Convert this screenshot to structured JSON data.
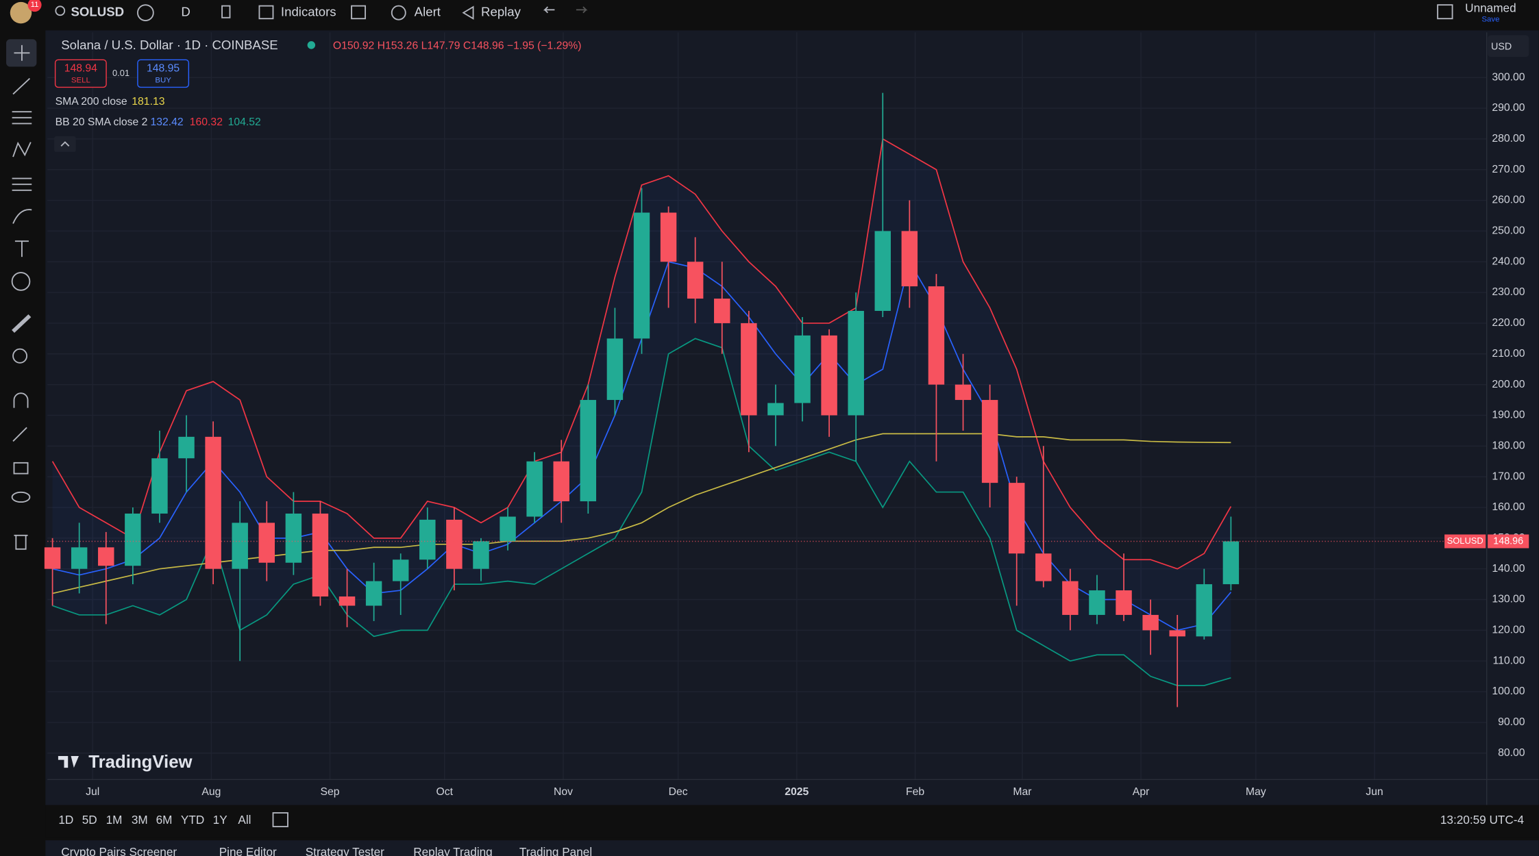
{
  "toolbar": {
    "badge": "11",
    "symbol": "SOLUSD",
    "interval": "D",
    "indicators": "Indicators",
    "alert": "Alert",
    "replay": "Replay",
    "layout": "Unnamed",
    "save": "Save"
  },
  "legend": {
    "title": "Solana / U.S. Dollar · 1D · COINBASE",
    "ohlc": [
      "O150.92",
      "H153.26",
      "L147.79",
      "C148.96",
      "−1.95 (−1.29%)"
    ],
    "sell_price": "148.94",
    "sell": "SELL",
    "spread": "0.01",
    "buy_price": "148.95",
    "buy": "BUY",
    "sma": {
      "label": "SMA 200 close",
      "value": "181.13"
    },
    "bb": {
      "label": "BB 20 SMA close 2",
      "basis": "132.42",
      "upper": "160.32",
      "lower": "104.52"
    }
  },
  "currency": "USD",
  "price_tag": {
    "symbol": "SOLUSD",
    "price": "148.96"
  },
  "watermark": "TradingView",
  "timeframes": [
    "1D",
    "5D",
    "1M",
    "3M",
    "6M",
    "YTD",
    "1Y",
    "All"
  ],
  "clock": "13:20:59 UTC-4",
  "bottom_tabs": [
    "Crypto Pairs Screener",
    "Pine Editor",
    "Strategy Tester",
    "Replay Trading",
    "Trading Panel"
  ],
  "chart_data": {
    "type": "candlestick",
    "up_color": "#22ab94",
    "down_color": "#f7525f",
    "x": [
      0.5,
      1.5,
      2.5,
      3.5,
      4.5,
      5.5,
      6.5,
      7.5,
      8.5,
      9.5,
      10.5,
      11.5,
      12.5,
      13.5,
      14.5,
      15.5,
      16.5,
      17.5,
      18.5,
      19.5,
      20.5,
      21.5,
      22.5,
      23.5,
      24.5,
      25.5,
      26.5,
      27.5,
      28.5,
      29.5,
      30.5,
      31.5,
      32.5,
      33.5,
      34.5,
      35.5,
      36.5,
      37.5,
      38.5,
      39.5,
      40.5,
      41.5,
      42.5,
      43.5,
      44.5
    ],
    "open": [
      147,
      140,
      147,
      141,
      158,
      176,
      183,
      140,
      155,
      142,
      158,
      131,
      128,
      136,
      143,
      156,
      140,
      149,
      157,
      175,
      162,
      195,
      215,
      256,
      240,
      228,
      220,
      190,
      194,
      216,
      190,
      224,
      250,
      232,
      200,
      195,
      168,
      145,
      136,
      125,
      133,
      125,
      120,
      118,
      135
    ],
    "high": [
      150,
      155,
      152,
      160,
      185,
      190,
      188,
      162,
      162,
      165,
      162,
      140,
      142,
      145,
      160,
      160,
      150,
      160,
      178,
      182,
      200,
      225,
      264,
      258,
      248,
      240,
      224,
      200,
      222,
      218,
      230,
      295,
      260,
      236,
      210,
      200,
      170,
      180,
      140,
      138,
      145,
      130,
      125,
      140,
      157
    ],
    "low": [
      128,
      132,
      122,
      135,
      155,
      165,
      135,
      110,
      136,
      138,
      128,
      121,
      123,
      125,
      140,
      133,
      136,
      146,
      155,
      155,
      158,
      190,
      210,
      225,
      220,
      210,
      178,
      180,
      188,
      183,
      175,
      222,
      225,
      175,
      185,
      160,
      128,
      134,
      120,
      122,
      123,
      112,
      95,
      117,
      133
    ],
    "close": [
      140,
      147,
      141,
      158,
      176,
      183,
      140,
      155,
      142,
      158,
      131,
      128,
      136,
      143,
      156,
      140,
      149,
      157,
      175,
      162,
      195,
      215,
      256,
      240,
      228,
      220,
      190,
      194,
      216,
      190,
      224,
      250,
      232,
      200,
      195,
      168,
      145,
      136,
      125,
      133,
      125,
      120,
      118,
      135,
      148.96
    ],
    "lines": [
      {
        "color": "#f23645",
        "values": [
          175,
          160,
          155,
          150,
          178,
          198,
          201,
          195,
          170,
          162,
          162,
          158,
          150,
          150,
          162,
          160,
          155,
          160,
          175,
          178,
          200,
          235,
          265,
          268,
          262,
          250,
          240,
          232,
          220,
          220,
          225,
          280,
          275,
          270,
          240,
          225,
          205,
          175,
          160,
          150,
          143,
          143,
          140,
          145,
          160.32
        ]
      },
      {
        "color": "#2962ff",
        "values": [
          140,
          138,
          140,
          143,
          150,
          165,
          175,
          165,
          150,
          150,
          152,
          140,
          132,
          133,
          140,
          148,
          145,
          148,
          155,
          162,
          170,
          190,
          215,
          240,
          238,
          232,
          222,
          210,
          200,
          210,
          200,
          205,
          240,
          225,
          205,
          190,
          160,
          145,
          135,
          130,
          130,
          125,
          120,
          122,
          132.42
        ]
      },
      {
        "color": "#089981",
        "values": [
          128,
          125,
          125,
          128,
          125,
          130,
          150,
          120,
          125,
          135,
          138,
          125,
          118,
          120,
          120,
          135,
          135,
          136,
          135,
          140,
          145,
          150,
          165,
          210,
          215,
          212,
          180,
          172,
          175,
          178,
          175,
          160,
          175,
          165,
          165,
          150,
          120,
          115,
          110,
          112,
          112,
          105,
          102,
          102,
          104.52
        ]
      },
      {
        "color": "#c9bb45",
        "values": [
          132,
          134,
          136,
          138,
          140,
          141,
          142,
          143,
          144,
          145,
          146,
          146,
          147,
          147,
          148,
          148,
          148,
          149,
          149,
          149,
          150,
          152,
          155,
          160,
          164,
          167,
          170,
          173,
          176,
          179,
          182,
          184,
          184,
          184,
          184,
          184,
          183,
          183,
          182,
          182,
          182,
          181.5,
          181.3,
          181.2,
          181.13
        ]
      }
    ],
    "band_fill": "#2962ff",
    "xlim": [
      0.31,
      54.05
    ],
    "xticks": [
      {
        "value": 2,
        "label": "Jul"
      },
      {
        "value": 6.43,
        "label": "Aug"
      },
      {
        "value": 10.86,
        "label": "Sep"
      },
      {
        "value": 15.14,
        "label": "Oct"
      },
      {
        "value": 19.57,
        "label": "Nov"
      },
      {
        "value": 23.86,
        "label": "Dec"
      },
      {
        "value": 28.29,
        "label": "2025"
      },
      {
        "value": 32.71,
        "label": "Feb"
      },
      {
        "value": 36.71,
        "label": "Mar"
      },
      {
        "value": 41.14,
        "label": "Apr"
      },
      {
        "value": 45.43,
        "label": "May"
      },
      {
        "value": 49.86,
        "label": "Jun"
      }
    ],
    "ylim": [
      71.4,
      314.7
    ],
    "yticks": [
      {
        "value": 80,
        "label": "80.00"
      },
      {
        "value": 90,
        "label": "90.00"
      },
      {
        "value": 100,
        "label": "100.00"
      },
      {
        "value": 110,
        "label": "110.00"
      },
      {
        "value": 120,
        "label": "120.00"
      },
      {
        "value": 130,
        "label": "130.00"
      },
      {
        "value": 140,
        "label": "140.00"
      },
      {
        "value": 150,
        "label": "150.00"
      },
      {
        "value": 160,
        "label": "160.00"
      },
      {
        "value": 170,
        "label": "170.00"
      },
      {
        "value": 180,
        "label": "180.00"
      },
      {
        "value": 190,
        "label": "190.00"
      },
      {
        "value": 200,
        "label": "200.00"
      },
      {
        "value": 210,
        "label": "210.00"
      },
      {
        "value": 220,
        "label": "220.00"
      },
      {
        "value": 230,
        "label": "230.00"
      },
      {
        "value": 240,
        "label": "240.00"
      },
      {
        "value": 250,
        "label": "250.00"
      },
      {
        "value": 260,
        "label": "260.00"
      },
      {
        "value": 270,
        "label": "270.00"
      },
      {
        "value": 280,
        "label": "280.00"
      },
      {
        "value": 290,
        "label": "290.00"
      },
      {
        "value": 300,
        "label": "300.00"
      }
    ],
    "grid": true
  }
}
